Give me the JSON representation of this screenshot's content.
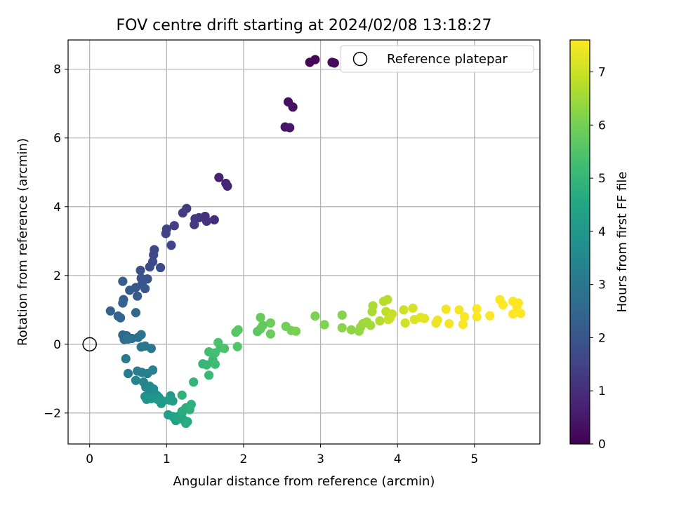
{
  "chart_data": {
    "type": "scatter",
    "title": "FOV centre drift starting at 2024/02/08 13:18:27",
    "xlabel": "Angular distance from reference (arcmin)",
    "ylabel": "Rotation from reference (arcmin)",
    "xlim": [
      -0.28,
      5.85
    ],
    "ylim": [
      -2.9,
      8.85
    ],
    "xticks": [
      0,
      1,
      2,
      3,
      4,
      5
    ],
    "yticks": [
      -2,
      0,
      2,
      4,
      6,
      8
    ],
    "xtick_labels": [
      "0",
      "1",
      "2",
      "3",
      "4",
      "5"
    ],
    "ytick_labels": [
      "−2",
      "0",
      "2",
      "4",
      "6",
      "8"
    ],
    "grid": true,
    "legend": {
      "position": "top-right",
      "entries": [
        "Reference platepar"
      ]
    },
    "reference_point": {
      "x": 0,
      "y": 0,
      "label": "Reference platepar"
    },
    "colorbar": {
      "label": "Hours from first FF file",
      "range": [
        0,
        7.6
      ],
      "ticks": [
        0,
        1,
        2,
        3,
        4,
        5,
        6,
        7
      ],
      "tick_labels": [
        "0",
        "1",
        "2",
        "3",
        "4",
        "5",
        "6",
        "7"
      ],
      "colormap": "viridis"
    },
    "points": [
      {
        "x": 2.86,
        "y": 8.2,
        "c": 0.05
      },
      {
        "x": 2.93,
        "y": 8.28,
        "c": 0.1
      },
      {
        "x": 3.15,
        "y": 8.2,
        "c": 0.15
      },
      {
        "x": 3.18,
        "y": 8.18,
        "c": 0.2
      },
      {
        "x": 2.58,
        "y": 7.05,
        "c": 0.3
      },
      {
        "x": 2.64,
        "y": 6.9,
        "c": 0.35
      },
      {
        "x": 2.54,
        "y": 6.32,
        "c": 0.45
      },
      {
        "x": 2.6,
        "y": 6.3,
        "c": 0.5
      },
      {
        "x": 1.68,
        "y": 4.85,
        "c": 0.7
      },
      {
        "x": 1.77,
        "y": 4.68,
        "c": 0.75
      },
      {
        "x": 1.79,
        "y": 4.6,
        "c": 0.8
      },
      {
        "x": 1.62,
        "y": 3.62,
        "c": 1.0
      },
      {
        "x": 1.5,
        "y": 3.72,
        "c": 1.05
      },
      {
        "x": 1.52,
        "y": 3.58,
        "c": 1.1
      },
      {
        "x": 1.42,
        "y": 3.68,
        "c": 1.15
      },
      {
        "x": 1.37,
        "y": 3.65,
        "c": 1.2
      },
      {
        "x": 1.36,
        "y": 3.48,
        "c": 1.25
      },
      {
        "x": 1.26,
        "y": 3.95,
        "c": 1.3
      },
      {
        "x": 1.21,
        "y": 3.82,
        "c": 1.35
      },
      {
        "x": 1.1,
        "y": 3.45,
        "c": 1.4
      },
      {
        "x": 1.0,
        "y": 3.35,
        "c": 1.45
      },
      {
        "x": 0.99,
        "y": 3.22,
        "c": 1.5
      },
      {
        "x": 1.06,
        "y": 2.88,
        "c": 1.55
      },
      {
        "x": 0.84,
        "y": 2.75,
        "c": 1.6
      },
      {
        "x": 0.83,
        "y": 2.6,
        "c": 1.65
      },
      {
        "x": 0.82,
        "y": 2.4,
        "c": 1.7
      },
      {
        "x": 0.78,
        "y": 2.25,
        "c": 1.75
      },
      {
        "x": 0.92,
        "y": 2.23,
        "c": 1.8
      },
      {
        "x": 0.66,
        "y": 2.15,
        "c": 1.85
      },
      {
        "x": 0.75,
        "y": 1.9,
        "c": 1.9
      },
      {
        "x": 0.67,
        "y": 1.92,
        "c": 1.95
      },
      {
        "x": 0.68,
        "y": 1.75,
        "c": 2.0
      },
      {
        "x": 0.6,
        "y": 1.65,
        "c": 2.05
      },
      {
        "x": 0.72,
        "y": 1.62,
        "c": 2.1
      },
      {
        "x": 0.52,
        "y": 1.57,
        "c": 2.15
      },
      {
        "x": 0.62,
        "y": 1.4,
        "c": 2.2
      },
      {
        "x": 0.43,
        "y": 1.83,
        "c": 2.25
      },
      {
        "x": 0.44,
        "y": 1.3,
        "c": 2.3
      },
      {
        "x": 0.43,
        "y": 1.2,
        "c": 2.35
      },
      {
        "x": 0.27,
        "y": 0.97,
        "c": 2.4
      },
      {
        "x": 0.37,
        "y": 0.82,
        "c": 2.45
      },
      {
        "x": 0.4,
        "y": 0.77,
        "c": 2.5
      },
      {
        "x": 0.6,
        "y": 0.92,
        "c": 2.55
      },
      {
        "x": 0.43,
        "y": 0.27,
        "c": 2.6
      },
      {
        "x": 0.48,
        "y": 0.25,
        "c": 2.65
      },
      {
        "x": 0.45,
        "y": 0.14,
        "c": 2.7
      },
      {
        "x": 0.55,
        "y": 0.17,
        "c": 2.75
      },
      {
        "x": 0.63,
        "y": 0.2,
        "c": 2.8
      },
      {
        "x": 0.67,
        "y": 0.28,
        "c": 2.85
      },
      {
        "x": 0.5,
        "y": 0.15,
        "c": 2.9
      },
      {
        "x": 0.67,
        "y": -0.08,
        "c": 2.95
      },
      {
        "x": 0.72,
        "y": -0.05,
        "c": 3.0
      },
      {
        "x": 0.8,
        "y": -0.12,
        "c": 3.05
      },
      {
        "x": 0.47,
        "y": -0.42,
        "c": 3.1
      },
      {
        "x": 0.5,
        "y": -0.85,
        "c": 3.15
      },
      {
        "x": 0.62,
        "y": -0.78,
        "c": 3.2
      },
      {
        "x": 0.68,
        "y": -0.82,
        "c": 3.25
      },
      {
        "x": 0.75,
        "y": -0.85,
        "c": 3.3
      },
      {
        "x": 0.82,
        "y": -0.75,
        "c": 3.35
      },
      {
        "x": 0.6,
        "y": -1.05,
        "c": 3.4
      },
      {
        "x": 0.7,
        "y": -1.1,
        "c": 3.45
      },
      {
        "x": 0.73,
        "y": -1.25,
        "c": 3.5
      },
      {
        "x": 0.78,
        "y": -1.22,
        "c": 3.55
      },
      {
        "x": 0.83,
        "y": -1.3,
        "c": 3.6
      },
      {
        "x": 0.78,
        "y": -1.4,
        "c": 3.65
      },
      {
        "x": 0.85,
        "y": -1.45,
        "c": 3.7
      },
      {
        "x": 0.88,
        "y": -1.5,
        "c": 3.75
      },
      {
        "x": 0.72,
        "y": -1.52,
        "c": 3.8
      },
      {
        "x": 0.74,
        "y": -1.6,
        "c": 3.85
      },
      {
        "x": 0.8,
        "y": -1.58,
        "c": 3.9
      },
      {
        "x": 0.88,
        "y": -1.6,
        "c": 3.95
      },
      {
        "x": 0.9,
        "y": -1.55,
        "c": 4.0
      },
      {
        "x": 0.95,
        "y": -1.65,
        "c": 4.05
      },
      {
        "x": 0.93,
        "y": -1.72,
        "c": 4.1
      },
      {
        "x": 1.05,
        "y": -1.5,
        "c": 4.15
      },
      {
        "x": 1.03,
        "y": -1.62,
        "c": 4.2
      },
      {
        "x": 1.08,
        "y": -1.65,
        "c": 4.25
      },
      {
        "x": 1.02,
        "y": -2.05,
        "c": 4.3
      },
      {
        "x": 1.08,
        "y": -2.1,
        "c": 4.35
      },
      {
        "x": 1.12,
        "y": -2.22,
        "c": 4.4
      },
      {
        "x": 1.15,
        "y": -2.1,
        "c": 4.45
      },
      {
        "x": 1.2,
        "y": -2.0,
        "c": 4.5
      },
      {
        "x": 1.22,
        "y": -2.2,
        "c": 4.55
      },
      {
        "x": 1.25,
        "y": -2.3,
        "c": 4.6
      },
      {
        "x": 1.27,
        "y": -2.25,
        "c": 4.65
      },
      {
        "x": 1.2,
        "y": -1.95,
        "c": 4.7
      },
      {
        "x": 1.25,
        "y": -1.85,
        "c": 4.75
      },
      {
        "x": 1.3,
        "y": -1.9,
        "c": 4.8
      },
      {
        "x": 1.32,
        "y": -1.75,
        "c": 4.85
      },
      {
        "x": 1.2,
        "y": -1.48,
        "c": 4.9
      },
      {
        "x": 1.35,
        "y": -1.1,
        "c": 4.95
      },
      {
        "x": 1.47,
        "y": -0.57,
        "c": 5.0
      },
      {
        "x": 1.52,
        "y": -0.6,
        "c": 5.05
      },
      {
        "x": 1.55,
        "y": -0.9,
        "c": 5.1
      },
      {
        "x": 1.6,
        "y": -0.45,
        "c": 5.15
      },
      {
        "x": 1.63,
        "y": -0.58,
        "c": 5.2
      },
      {
        "x": 1.55,
        "y": -0.22,
        "c": 5.25
      },
      {
        "x": 1.63,
        "y": -0.25,
        "c": 5.3
      },
      {
        "x": 1.7,
        "y": -0.1,
        "c": 5.35
      },
      {
        "x": 1.67,
        "y": 0.05,
        "c": 5.4
      },
      {
        "x": 1.75,
        "y": -0.12,
        "c": 5.45
      },
      {
        "x": 1.92,
        "y": -0.07,
        "c": 5.5
      },
      {
        "x": 1.9,
        "y": 0.35,
        "c": 5.55
      },
      {
        "x": 1.93,
        "y": 0.42,
        "c": 5.6
      },
      {
        "x": 2.18,
        "y": 0.37,
        "c": 5.65
      },
      {
        "x": 2.22,
        "y": 0.45,
        "c": 5.7
      },
      {
        "x": 2.25,
        "y": 0.55,
        "c": 5.75
      },
      {
        "x": 2.22,
        "y": 0.78,
        "c": 5.8
      },
      {
        "x": 2.35,
        "y": 0.3,
        "c": 5.85
      },
      {
        "x": 2.35,
        "y": 0.62,
        "c": 5.9
      },
      {
        "x": 2.55,
        "y": 0.52,
        "c": 5.95
      },
      {
        "x": 2.62,
        "y": 0.4,
        "c": 6.0
      },
      {
        "x": 2.68,
        "y": 0.38,
        "c": 6.05
      },
      {
        "x": 2.93,
        "y": 0.82,
        "c": 6.1
      },
      {
        "x": 3.05,
        "y": 0.57,
        "c": 6.15
      },
      {
        "x": 3.28,
        "y": 0.85,
        "c": 6.2
      },
      {
        "x": 3.28,
        "y": 0.48,
        "c": 6.25
      },
      {
        "x": 3.4,
        "y": 0.42,
        "c": 6.3
      },
      {
        "x": 3.5,
        "y": 0.38,
        "c": 6.35
      },
      {
        "x": 3.52,
        "y": 0.5,
        "c": 6.4
      },
      {
        "x": 3.55,
        "y": 0.6,
        "c": 6.45
      },
      {
        "x": 3.6,
        "y": 0.65,
        "c": 6.5
      },
      {
        "x": 3.65,
        "y": 0.55,
        "c": 6.55
      },
      {
        "x": 3.67,
        "y": 0.95,
        "c": 6.6
      },
      {
        "x": 3.68,
        "y": 1.12,
        "c": 6.65
      },
      {
        "x": 3.77,
        "y": 0.68,
        "c": 6.7
      },
      {
        "x": 3.82,
        "y": 1.25,
        "c": 6.75
      },
      {
        "x": 3.87,
        "y": 1.3,
        "c": 6.8
      },
      {
        "x": 3.85,
        "y": 0.95,
        "c": 6.85
      },
      {
        "x": 3.9,
        "y": 0.75,
        "c": 6.9
      },
      {
        "x": 3.93,
        "y": 0.88,
        "c": 6.95
      },
      {
        "x": 3.88,
        "y": 0.72,
        "c": 7.0
      },
      {
        "x": 4.08,
        "y": 1.0,
        "c": 7.05
      },
      {
        "x": 4.1,
        "y": 0.62,
        "c": 7.1
      },
      {
        "x": 4.2,
        "y": 1.05,
        "c": 7.15
      },
      {
        "x": 4.22,
        "y": 0.72,
        "c": 7.2
      },
      {
        "x": 4.3,
        "y": 0.78,
        "c": 7.25
      },
      {
        "x": 4.35,
        "y": 0.75,
        "c": 7.3
      },
      {
        "x": 4.5,
        "y": 0.62,
        "c": 7.35
      },
      {
        "x": 4.52,
        "y": 0.7,
        "c": 7.4
      },
      {
        "x": 4.63,
        "y": 1.02,
        "c": 7.45
      },
      {
        "x": 4.67,
        "y": 0.6,
        "c": 7.48
      },
      {
        "x": 4.8,
        "y": 1.0,
        "c": 7.5
      },
      {
        "x": 4.85,
        "y": 0.58,
        "c": 7.52
      },
      {
        "x": 4.87,
        "y": 0.8,
        "c": 7.54
      },
      {
        "x": 5.03,
        "y": 1.03,
        "c": 7.56
      },
      {
        "x": 5.03,
        "y": 0.8,
        "c": 7.57
      },
      {
        "x": 5.2,
        "y": 0.83,
        "c": 7.58
      },
      {
        "x": 5.33,
        "y": 1.3,
        "c": 7.58
      },
      {
        "x": 5.37,
        "y": 1.15,
        "c": 7.59
      },
      {
        "x": 5.5,
        "y": 1.25,
        "c": 7.59
      },
      {
        "x": 5.55,
        "y": 1.1,
        "c": 7.6
      },
      {
        "x": 5.57,
        "y": 1.2,
        "c": 7.6
      },
      {
        "x": 5.5,
        "y": 0.88,
        "c": 7.6
      },
      {
        "x": 5.6,
        "y": 0.9,
        "c": 7.6
      }
    ]
  }
}
